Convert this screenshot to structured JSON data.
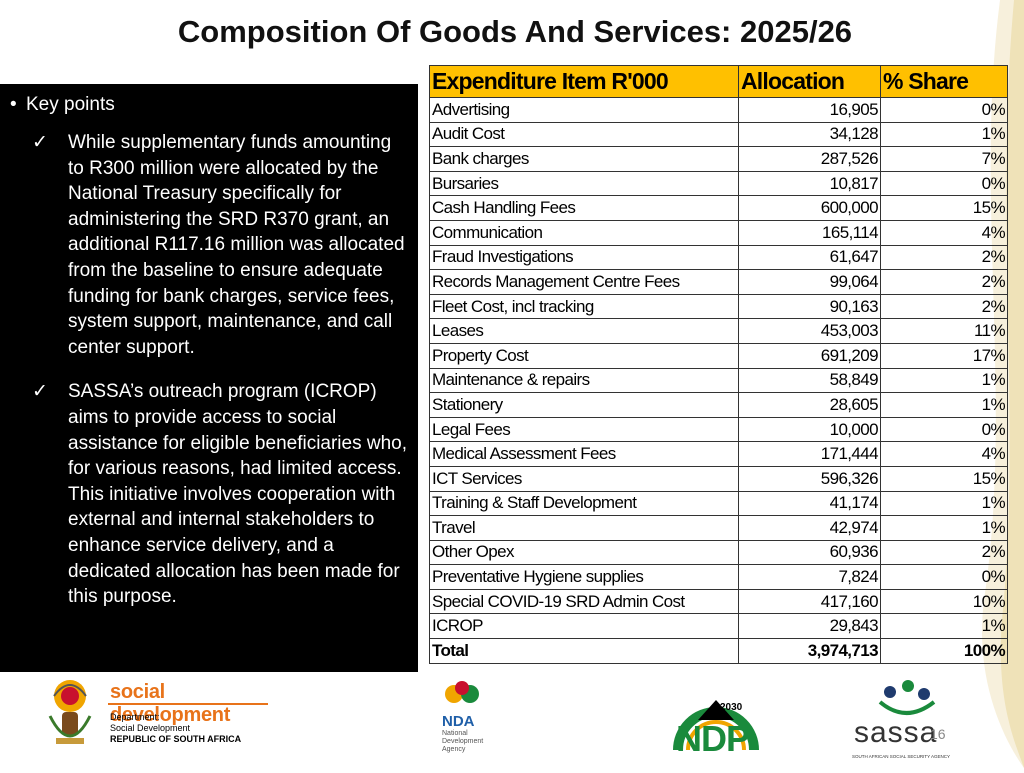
{
  "title": "Composition Of Goods And Services: 2025/26",
  "key_points": {
    "heading": "Key points",
    "items": [
      "While supplementary funds amounting to R300 million were allocated by the National Treasury specifically for administering the SRD R370 grant, an additional R117.16 million was allocated from the baseline to ensure adequate funding for bank charges, service fees, system support, maintenance, and call center support.",
      "SASSA’s outreach program (ICROP) aims to provide access to social assistance for eligible beneficiaries who, for various reasons, had limited access. This initiative involves cooperation with external and internal stakeholders to enhance service delivery, and a dedicated allocation has been made for this purpose."
    ]
  },
  "table": {
    "headers": [
      "Expenditure Item R'000",
      "Allocation",
      "% Share"
    ],
    "rows": [
      [
        "Advertising",
        "16,905",
        "0%"
      ],
      [
        "Audit Cost",
        "34,128",
        "1%"
      ],
      [
        "Bank charges",
        "287,526",
        "7%"
      ],
      [
        "Bursaries",
        "10,817",
        "0%"
      ],
      [
        "Cash Handling Fees",
        "600,000",
        "15%"
      ],
      [
        "Communication",
        "165,114",
        "4%"
      ],
      [
        "Fraud Investigations",
        "61,647",
        "2%"
      ],
      [
        "Records Management Centre Fees",
        "99,064",
        "2%"
      ],
      [
        "Fleet Cost, incl tracking",
        "90,163",
        "2%"
      ],
      [
        "Leases",
        "453,003",
        "11%"
      ],
      [
        "Property Cost",
        "691,209",
        "17%"
      ],
      [
        "Maintenance & repairs",
        "58,849",
        "1%"
      ],
      [
        "Stationery",
        "28,605",
        "1%"
      ],
      [
        "Legal Fees",
        "10,000",
        "0%"
      ],
      [
        "Medical Assessment Fees",
        "171,444",
        "4%"
      ],
      [
        "ICT Services",
        "596,326",
        "15%"
      ],
      [
        "Training & Staff Development",
        "41,174",
        "1%"
      ],
      [
        "Travel",
        "42,974",
        "1%"
      ],
      [
        "Other Opex",
        "60,936",
        "2%"
      ],
      [
        "Preventative Hygiene supplies",
        "7,824",
        "0%"
      ],
      [
        "Special COVID-19 SRD Admin Cost",
        "417,160",
        "10%"
      ],
      [
        "ICROP",
        "29,843",
        "1%"
      ]
    ],
    "total": [
      "Total",
      "3,974,713",
      "100%"
    ]
  },
  "footer": {
    "sd_logo": {
      "name": "social development",
      "line1": "Department:",
      "line2": "Social Development",
      "line3": "REPUBLIC OF SOUTH AFRICA"
    },
    "nda_logo": {
      "name": "NDA",
      "line1": "National",
      "line2": "Development",
      "line3": "Agency"
    },
    "ndp_logo": {
      "year": "2030",
      "name": "NDP"
    },
    "sassa_logo": {
      "name": "sassa",
      "tagline": "SOUTH AFRICAN SOCIAL SECURITY AGENCY"
    },
    "page_number": "16"
  },
  "colors": {
    "header_fill": "#ffc000",
    "panel_bg": "#000000",
    "sd_orange": "#e8731a",
    "ndp_green": "#1a8a3c",
    "sassa_blue": "#1f3b6e"
  }
}
